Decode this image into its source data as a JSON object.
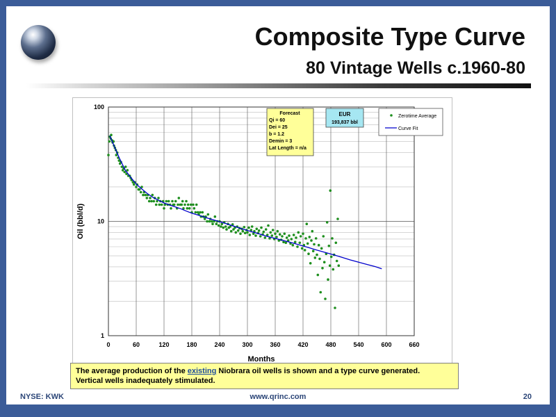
{
  "slide": {
    "title": "Composite Type Curve",
    "subtitle": "80 Vintage Wells c.1960-80",
    "caption_before": "The average production of the ",
    "caption_link": "existing",
    "caption_after": " Niobrara oil wells is shown and a type curve generated.",
    "caption_line2": "Vertical wells inadequately stimulated.",
    "footer_left": "NYSE: KWK",
    "footer_center": "www.qrinc.com",
    "footer_right": "20",
    "colors": {
      "frame": "#3b5c98",
      "caption_bg": "#ffff99",
      "footer_text": "#2b4577"
    }
  },
  "chart_data": {
    "type": "scatter",
    "xlabel": "Months",
    "ylabel": "Oil (bbl/d)",
    "xlim": [
      0,
      660
    ],
    "x_ticks": [
      0,
      60,
      120,
      180,
      240,
      300,
      360,
      420,
      480,
      540,
      600,
      660
    ],
    "ylim": [
      1,
      100
    ],
    "y_scale": "log",
    "y_tick_labels": [
      "1",
      "10",
      "100"
    ],
    "grid": true,
    "legend": {
      "placement": "top-right",
      "entries": [
        "Zerotime Average",
        "Curve Fit"
      ]
    },
    "series": [
      {
        "name": "Zerotime Average",
        "style": "markers",
        "color": "#1f8f1f",
        "points": [
          [
            0,
            38
          ],
          [
            2,
            50
          ],
          [
            3,
            55
          ],
          [
            5,
            53
          ],
          [
            6,
            57
          ],
          [
            8,
            51
          ],
          [
            9,
            49
          ],
          [
            11,
            50
          ],
          [
            12,
            46
          ],
          [
            14,
            44
          ],
          [
            16,
            42
          ],
          [
            17,
            38
          ],
          [
            19,
            40
          ],
          [
            21,
            36
          ],
          [
            23,
            34
          ],
          [
            25,
            32
          ],
          [
            27,
            33
          ],
          [
            29,
            30
          ],
          [
            31,
            28
          ],
          [
            33,
            29
          ],
          [
            35,
            27
          ],
          [
            37,
            30
          ],
          [
            39,
            26
          ],
          [
            41,
            28
          ],
          [
            43,
            25
          ],
          [
            46,
            25
          ],
          [
            48,
            24
          ],
          [
            50,
            23
          ],
          [
            53,
            22
          ],
          [
            55,
            21
          ],
          [
            57,
            22
          ],
          [
            60,
            20
          ],
          [
            62,
            21
          ],
          [
            65,
            19
          ],
          [
            67,
            19
          ],
          [
            70,
            18
          ],
          [
            72,
            20
          ],
          [
            75,
            17
          ],
          [
            77,
            18
          ],
          [
            80,
            17
          ],
          [
            83,
            16
          ],
          [
            85,
            17
          ],
          [
            88,
            15
          ],
          [
            90,
            16
          ],
          [
            93,
            15
          ],
          [
            95,
            17
          ],
          [
            98,
            15
          ],
          [
            100,
            16
          ],
          [
            103,
            14
          ],
          [
            105,
            15
          ],
          [
            108,
            16
          ],
          [
            110,
            14
          ],
          [
            112,
            15
          ],
          [
            115,
            14
          ],
          [
            118,
            15
          ],
          [
            120,
            13
          ],
          [
            122,
            14
          ],
          [
            125,
            15
          ],
          [
            128,
            14
          ],
          [
            130,
            15
          ],
          [
            133,
            14
          ],
          [
            135,
            13
          ],
          [
            138,
            15
          ],
          [
            140,
            14
          ],
          [
            142,
            14
          ],
          [
            145,
            15
          ],
          [
            148,
            13
          ],
          [
            150,
            14
          ],
          [
            152,
            16
          ],
          [
            155,
            14
          ],
          [
            158,
            14
          ],
          [
            160,
            15
          ],
          [
            162,
            13
          ],
          [
            165,
            14
          ],
          [
            168,
            15
          ],
          [
            170,
            13
          ],
          [
            172,
            14
          ],
          [
            175,
            13
          ],
          [
            178,
            14
          ],
          [
            180,
            12
          ],
          [
            183,
            14
          ],
          [
            185,
            13
          ],
          [
            188,
            12
          ],
          [
            190,
            14
          ],
          [
            193,
            12
          ],
          [
            195,
            11.5
          ],
          [
            198,
            12
          ],
          [
            200,
            11
          ],
          [
            203,
            12
          ],
          [
            205,
            11
          ],
          [
            208,
            10.5
          ],
          [
            210,
            11
          ],
          [
            213,
            10
          ],
          [
            215,
            11.5
          ],
          [
            218,
            10
          ],
          [
            220,
            10.5
          ],
          [
            223,
            10
          ],
          [
            225,
            9.5
          ],
          [
            228,
            10
          ],
          [
            230,
            11
          ],
          [
            233,
            9.5
          ],
          [
            235,
            10
          ],
          [
            238,
            9.2
          ],
          [
            240,
            10
          ],
          [
            243,
            9
          ],
          [
            245,
            9.5
          ],
          [
            248,
            8.8
          ],
          [
            250,
            9.8
          ],
          [
            253,
            9
          ],
          [
            255,
            8.5
          ],
          [
            258,
            9.5
          ],
          [
            260,
            8.8
          ],
          [
            263,
            9
          ],
          [
            265,
            8.2
          ],
          [
            268,
            9.4
          ],
          [
            270,
            8.5
          ],
          [
            273,
            8.8
          ],
          [
            275,
            8
          ],
          [
            278,
            9
          ],
          [
            280,
            8.3
          ],
          [
            283,
            8.7
          ],
          [
            285,
            7.8
          ],
          [
            288,
            8.6
          ],
          [
            290,
            8.2
          ],
          [
            293,
            8.9
          ],
          [
            295,
            7.9
          ],
          [
            298,
            8.4
          ],
          [
            300,
            8
          ],
          [
            303,
            8.8
          ],
          [
            305,
            7.6
          ],
          [
            308,
            8.4
          ],
          [
            310,
            9
          ],
          [
            313,
            7.8
          ],
          [
            315,
            8.2
          ],
          [
            318,
            7.5
          ],
          [
            320,
            8.6
          ],
          [
            323,
            7.9
          ],
          [
            325,
            8.3
          ],
          [
            328,
            7.4
          ],
          [
            330,
            8.8
          ],
          [
            333,
            7.7
          ],
          [
            335,
            8.1
          ],
          [
            338,
            7.2
          ],
          [
            340,
            8.5
          ],
          [
            343,
            7.6
          ],
          [
            345,
            9.2
          ],
          [
            348,
            7.1
          ],
          [
            350,
            8
          ],
          [
            353,
            7.5
          ],
          [
            355,
            8.4
          ],
          [
            358,
            7
          ],
          [
            360,
            7.8
          ],
          [
            363,
            7.3
          ],
          [
            365,
            8.2
          ],
          [
            368,
            6.8
          ],
          [
            370,
            7.7
          ],
          [
            373,
            6.9
          ],
          [
            375,
            7.4
          ],
          [
            378,
            6.6
          ],
          [
            380,
            7.8
          ],
          [
            383,
            6.5
          ],
          [
            385,
            7.2
          ],
          [
            388,
            6.8
          ],
          [
            390,
            7.5
          ],
          [
            393,
            6.4
          ],
          [
            395,
            7
          ],
          [
            398,
            6.2
          ],
          [
            400,
            7.6
          ],
          [
            403,
            6.6
          ],
          [
            405,
            7.2
          ],
          [
            408,
            6
          ],
          [
            410,
            8
          ],
          [
            413,
            6.5
          ],
          [
            415,
            7.4
          ],
          [
            418,
            5.8
          ],
          [
            420,
            7.8
          ],
          [
            422,
            6.2
          ],
          [
            424,
            5.6
          ],
          [
            426,
            7.1
          ],
          [
            428,
            9.5
          ],
          [
            430,
            6.4
          ],
          [
            432,
            5.2
          ],
          [
            434,
            7.3
          ],
          [
            436,
            4.3
          ],
          [
            438,
            6.8
          ],
          [
            440,
            8.2
          ],
          [
            442,
            5.5
          ],
          [
            444,
            6.3
          ],
          [
            446,
            4.8
          ],
          [
            448,
            7.1
          ],
          [
            450,
            5.1
          ],
          [
            452,
            3.4
          ],
          [
            454,
            6.2
          ],
          [
            456,
            4.7
          ],
          [
            458,
            2.4
          ],
          [
            460,
            5.8
          ],
          [
            462,
            3.9
          ],
          [
            464,
            7.4
          ],
          [
            466,
            4.4
          ],
          [
            468,
            2.1
          ],
          [
            470,
            5.2
          ],
          [
            472,
            9.8
          ],
          [
            474,
            3.1
          ],
          [
            476,
            6.1
          ],
          [
            478,
            4.1
          ],
          [
            479,
            18.6
          ],
          [
            481,
            4.9
          ],
          [
            483,
            7.1
          ],
          [
            485,
            3.8
          ],
          [
            487,
            5.1
          ],
          [
            489,
            1.75
          ],
          [
            491,
            6.5
          ],
          [
            493,
            4.5
          ],
          [
            495,
            10.5
          ],
          [
            497,
            4.1
          ]
        ]
      },
      {
        "name": "Curve Fit",
        "style": "line",
        "color": "#0000cc",
        "points": [
          [
            3,
            56
          ],
          [
            12,
            46
          ],
          [
            24,
            35.5
          ],
          [
            36,
            28.2
          ],
          [
            48,
            24.3
          ],
          [
            60,
            21.2
          ],
          [
            72,
            19.2
          ],
          [
            84,
            17.5
          ],
          [
            96,
            16.2
          ],
          [
            108,
            15.3
          ],
          [
            120,
            14.5
          ],
          [
            132,
            13.9
          ],
          [
            144,
            13.4
          ],
          [
            156,
            12.9
          ],
          [
            168,
            12.3
          ],
          [
            180,
            11.8
          ],
          [
            198,
            11.2
          ],
          [
            216,
            10.6
          ],
          [
            234,
            10.1
          ],
          [
            252,
            9.6
          ],
          [
            270,
            9.1
          ],
          [
            288,
            8.6
          ],
          [
            306,
            8.2
          ],
          [
            324,
            7.8
          ],
          [
            342,
            7.4
          ],
          [
            360,
            7.1
          ],
          [
            378,
            6.8
          ],
          [
            396,
            6.5
          ],
          [
            414,
            6.2
          ],
          [
            432,
            5.9
          ],
          [
            450,
            5.6
          ],
          [
            468,
            5.35
          ],
          [
            486,
            5.1
          ],
          [
            504,
            4.85
          ],
          [
            522,
            4.6
          ],
          [
            540,
            4.4
          ],
          [
            558,
            4.2
          ],
          [
            576,
            4.02
          ],
          [
            590,
            3.85
          ]
        ]
      }
    ],
    "annotations": [
      {
        "id": "forecast",
        "lines": [
          "Forecast",
          "Qi = 60",
          "Dei = 25",
          "b = 1.2",
          "Demin = 3",
          "Lat Length = n/a"
        ],
        "color": "#ffff99"
      },
      {
        "id": "eur",
        "lines": [
          "EUR",
          "193,837 bbl"
        ],
        "color": "#a6e7f2"
      }
    ]
  }
}
